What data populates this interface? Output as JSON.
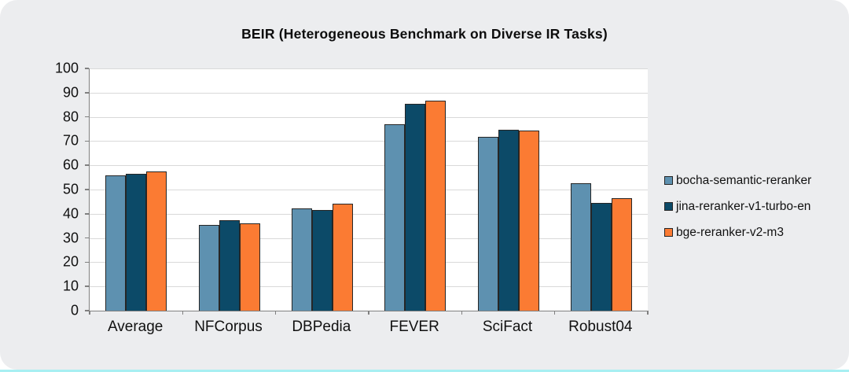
{
  "chart_data": {
    "type": "bar",
    "title": "BEIR (Heterogeneous Benchmark on Diverse IR Tasks)",
    "categories": [
      "Average",
      "NFCorpus",
      "DBPedia",
      "FEVER",
      "SciFact",
      "Robust04"
    ],
    "series": [
      {
        "name": "bocha-semantic-reranker",
        "color": "#5E91B0",
        "values": [
          55.8,
          35.5,
          42.2,
          77.0,
          71.8,
          52.6
        ]
      },
      {
        "name": "jina-reranker-v1-turbo-en",
        "color": "#0C4A68",
        "values": [
          56.6,
          37.3,
          41.6,
          85.3,
          74.7,
          44.4
        ]
      },
      {
        "name": "bge-reranker-v2-m3",
        "color": "#FB7B33",
        "values": [
          57.5,
          36.0,
          44.2,
          86.7,
          74.4,
          46.3
        ]
      }
    ],
    "ylim": [
      0,
      100
    ],
    "y_ticks": [
      0,
      10,
      20,
      30,
      40,
      50,
      60,
      70,
      80,
      90,
      100
    ],
    "grid": true,
    "legend_position": "right"
  },
  "colors": {
    "card_background": "#ECEDEF",
    "plot_background": "#FFFFFF",
    "gridline": "#D9D9D9",
    "axis": "#808080",
    "bar_border": "#262626",
    "bottom_strip": "#A8EFF2"
  }
}
